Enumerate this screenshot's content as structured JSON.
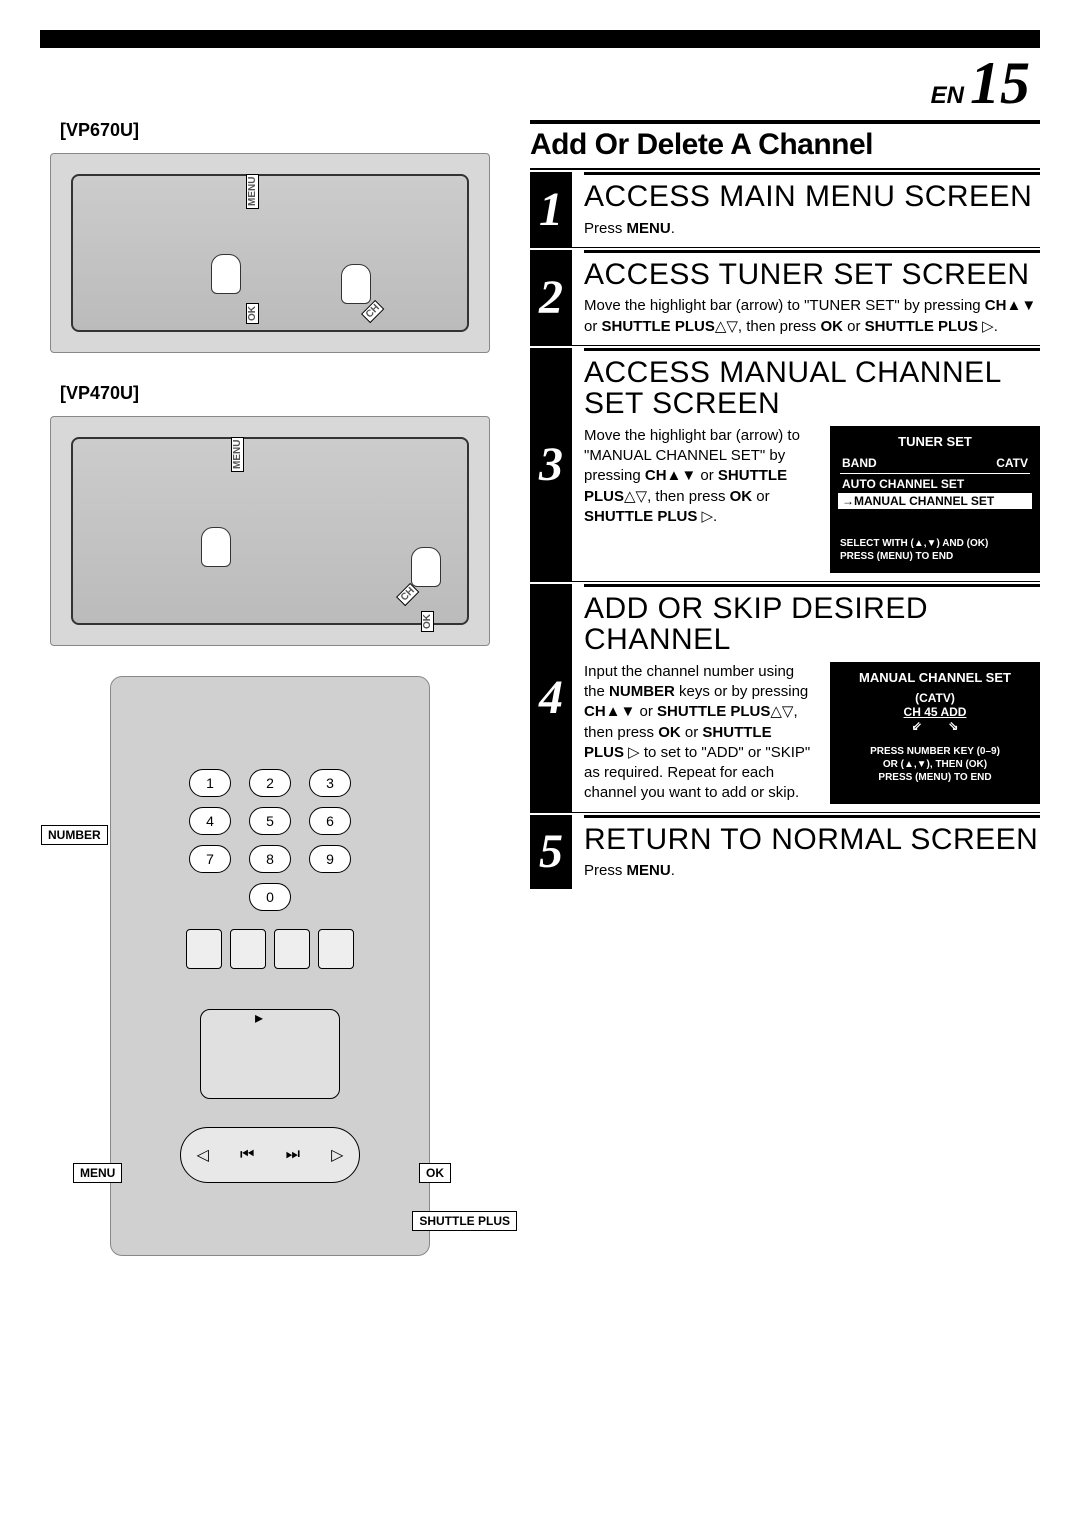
{
  "page": {
    "lang_label": "EN",
    "number": "15"
  },
  "models": {
    "top": "[VP670U]",
    "bottom": "[VP470U]"
  },
  "device_callouts": {
    "menu": "MENU",
    "ok": "OK",
    "ch": "CH"
  },
  "remote": {
    "numbers": [
      "1",
      "2",
      "3",
      "4",
      "5",
      "6",
      "7",
      "8",
      "9",
      "",
      "0",
      ""
    ],
    "callouts": {
      "number": "NUMBER",
      "menu": "MENU",
      "ok": "OK",
      "shuttle_plus": "SHUTTLE PLUS"
    }
  },
  "section_title": "Add Or Delete A Channel",
  "steps": [
    {
      "num": "1",
      "title": "ACCESS MAIN MENU SCREEN",
      "body_html": "Press <b>MENU</b>."
    },
    {
      "num": "2",
      "title": "ACCESS TUNER SET SCREEN",
      "body_html": "Move the highlight bar (arrow) to \"TUNER SET\" by pressing <b>CH</b>▲▼ or <b>SHUTTLE PLUS</b>△▽, then press <b>OK</b> or <b>SHUTTLE PLUS</b> ▷."
    },
    {
      "num": "3",
      "title": "ACCESS MANUAL CHANNEL SET SCREEN",
      "body_html": "Move the highlight bar (arrow) to \"MANUAL CHANNEL SET\" by pressing <b>CH</b>▲▼ or <b>SHUTTLE PLUS</b>△▽, then press <b>OK</b> or <b>SHUTTLE PLUS</b> ▷.",
      "screen": {
        "title": "TUNER SET",
        "rows": [
          {
            "left": "BAND",
            "right": "CATV"
          },
          {
            "left": "AUTO CHANNEL SET",
            "right": ""
          }
        ],
        "highlight": "→MANUAL CHANNEL SET",
        "footer": [
          "SELECT WITH (▲,▼) AND (OK)",
          "PRESS (MENU) TO END"
        ]
      }
    },
    {
      "num": "4",
      "title": "ADD OR SKIP DESIRED CHANNEL",
      "body_html": "Input the channel number using the <b>NUMBER</b> keys or by pressing <b>CH</b>▲▼ or <b>SHUTTLE PLUS</b>△▽, then press <b>OK</b> or <b>SHUTTLE PLUS</b> ▷ to set to \"ADD\" or \"SKIP\" as required. Repeat for each channel you want to add or skip.",
      "screen": {
        "title": "MANUAL CHANNEL SET",
        "band": "(CATV)",
        "ch_line": "CH   45  ADD",
        "arrows": "⇙        ⇘",
        "footer": [
          "PRESS NUMBER KEY (0–9)",
          "OR (▲,▼), THEN (OK)",
          "PRESS (MENU) TO END"
        ]
      }
    },
    {
      "num": "5",
      "title": "RETURN TO NORMAL SCREEN",
      "body_html": "Press <b>MENU</b>."
    }
  ]
}
